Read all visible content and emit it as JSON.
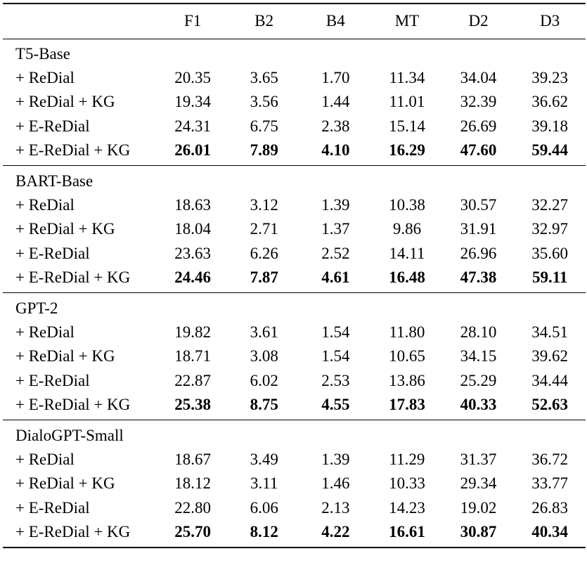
{
  "columns": [
    "F1",
    "B2",
    "B4",
    "MT",
    "D2",
    "D3"
  ],
  "groups": [
    {
      "name": "T5-Base",
      "rows": [
        {
          "label": "+ ReDial",
          "values": [
            "20.35",
            "3.65",
            "1.70",
            "11.34",
            "34.04",
            "39.23"
          ],
          "bold": false
        },
        {
          "label": "+ ReDial + KG",
          "values": [
            "19.34",
            "3.56",
            "1.44",
            "11.01",
            "32.39",
            "36.62"
          ],
          "bold": false
        },
        {
          "label": "+ E-ReDial",
          "values": [
            "24.31",
            "6.75",
            "2.38",
            "15.14",
            "26.69",
            "39.18"
          ],
          "bold": false
        },
        {
          "label": "+ E-ReDial + KG",
          "values": [
            "26.01",
            "7.89",
            "4.10",
            "16.29",
            "47.60",
            "59.44"
          ],
          "bold": true
        }
      ]
    },
    {
      "name": "BART-Base",
      "rows": [
        {
          "label": "+ ReDial",
          "values": [
            "18.63",
            "3.12",
            "1.39",
            "10.38",
            "30.57",
            "32.27"
          ],
          "bold": false
        },
        {
          "label": "+ ReDial + KG",
          "values": [
            "18.04",
            "2.71",
            "1.37",
            "9.86",
            "31.91",
            "32.97"
          ],
          "bold": false
        },
        {
          "label": "+ E-ReDial",
          "values": [
            "23.63",
            "6.26",
            "2.52",
            "14.11",
            "26.96",
            "35.60"
          ],
          "bold": false
        },
        {
          "label": "+ E-ReDial + KG",
          "values": [
            "24.46",
            "7.87",
            "4.61",
            "16.48",
            "47.38",
            "59.11"
          ],
          "bold": true
        }
      ]
    },
    {
      "name": "GPT-2",
      "rows": [
        {
          "label": "+ ReDial",
          "values": [
            "19.82",
            "3.61",
            "1.54",
            "11.80",
            "28.10",
            "34.51"
          ],
          "bold": false
        },
        {
          "label": "+ ReDial + KG",
          "values": [
            "18.71",
            "3.08",
            "1.54",
            "10.65",
            "34.15",
            "39.62"
          ],
          "bold": false
        },
        {
          "label": "+ E-ReDial",
          "values": [
            "22.87",
            "6.02",
            "2.53",
            "13.86",
            "25.29",
            "34.44"
          ],
          "bold": false
        },
        {
          "label": "+ E-ReDial + KG",
          "values": [
            "25.38",
            "8.75",
            "4.55",
            "17.83",
            "40.33",
            "52.63"
          ],
          "bold": true
        }
      ]
    },
    {
      "name": "DialoGPT-Small",
      "rows": [
        {
          "label": "+ ReDial",
          "values": [
            "18.67",
            "3.49",
            "1.39",
            "11.29",
            "31.37",
            "36.72"
          ],
          "bold": false
        },
        {
          "label": "+ ReDial + KG",
          "values": [
            "18.12",
            "3.11",
            "1.46",
            "10.33",
            "29.34",
            "33.77"
          ],
          "bold": false
        },
        {
          "label": "+ E-ReDial",
          "values": [
            "22.80",
            "6.06",
            "2.13",
            "14.23",
            "19.02",
            "26.83"
          ],
          "bold": false
        },
        {
          "label": "+ E-ReDial + KG",
          "values": [
            "25.70",
            "8.12",
            "4.22",
            "16.61",
            "30.87",
            "40.34"
          ],
          "bold": true
        }
      ]
    }
  ]
}
